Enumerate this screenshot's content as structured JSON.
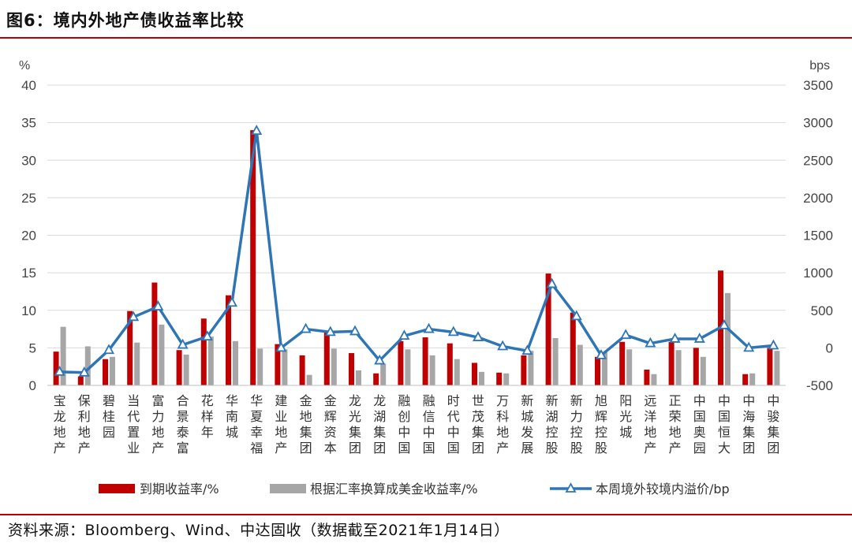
{
  "header": {
    "title": "图6：境内外地产债收益率比较"
  },
  "footer": {
    "source": "资料来源：Bloomberg、Wind、中达固收（数据截至2021年1月14日）"
  },
  "chart_data": {
    "type": "bar",
    "left_axis_unit": "%",
    "right_axis_unit": "bps",
    "ylim": [
      0,
      40
    ],
    "yticks": [
      0,
      5,
      10,
      15,
      20,
      25,
      30,
      35,
      40
    ],
    "y2lim": [
      -500,
      3500
    ],
    "y2ticks": [
      -500,
      0,
      500,
      1000,
      1500,
      2000,
      2500,
      3000,
      3500
    ],
    "categories": [
      "宝龙地产",
      "保利地产",
      "碧桂园",
      "当代置业",
      "富力地产",
      "合景泰富",
      "花样年",
      "华南城",
      "华夏幸福",
      "建业地产",
      "金地集团",
      "金辉资本",
      "龙光集团",
      "龙湖集团",
      "融创中国",
      "融信中国",
      "时代中国",
      "世茂集团",
      "万科地产",
      "新城发展",
      "新湖控股",
      "新力控股",
      "旭辉控股",
      "阳光城",
      "远洋地产",
      "正荣地产",
      "中国奥园",
      "中国恒大",
      "中海集团",
      "中骏集团"
    ],
    "series": [
      {
        "name": "到期收益率/%",
        "type": "bar",
        "axis": "left",
        "color": "#c00000",
        "values": [
          4.5,
          1.2,
          3.5,
          9.9,
          13.7,
          4.7,
          8.9,
          12.0,
          34.0,
          5.5,
          4.0,
          7.1,
          4.3,
          1.6,
          5.9,
          6.4,
          5.6,
          3.0,
          1.7,
          4.0,
          14.9,
          9.7,
          3.8,
          5.8,
          2.1,
          5.8,
          5.0,
          15.3,
          1.5,
          5.0
        ]
      },
      {
        "name": "根据汇率换算成美金收益率/%",
        "type": "bar",
        "axis": "left",
        "color": "#a6a6a6",
        "values": [
          7.8,
          5.2,
          3.8,
          5.7,
          8.1,
          4.1,
          6.5,
          5.9,
          4.9,
          4.8,
          1.4,
          4.9,
          2.0,
          2.9,
          4.8,
          4.0,
          3.5,
          1.8,
          1.6,
          4.6,
          6.3,
          5.4,
          4.4,
          4.8,
          1.5,
          4.7,
          3.8,
          12.3,
          1.6,
          4.6
        ]
      },
      {
        "name": "本周境外较境内溢价/bp",
        "type": "line",
        "axis": "right",
        "color": "#2e75b6",
        "values": [
          -320,
          -330,
          -30,
          410,
          550,
          40,
          150,
          600,
          2890,
          0,
          250,
          210,
          220,
          -170,
          160,
          250,
          210,
          140,
          20,
          -40,
          850,
          420,
          -100,
          170,
          60,
          120,
          120,
          300,
          0,
          30
        ]
      }
    ],
    "legend_position": "bottom"
  }
}
